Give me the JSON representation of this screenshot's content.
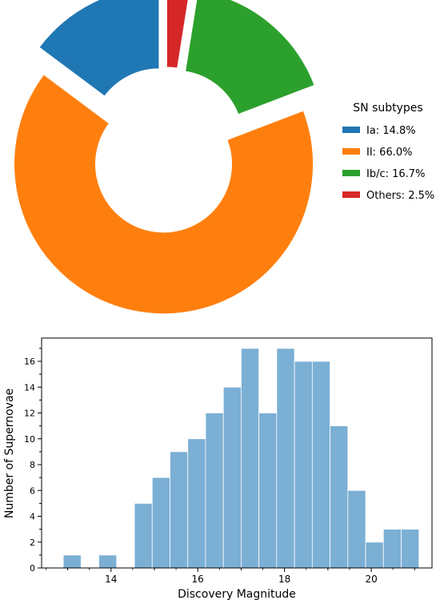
{
  "chart_data": [
    {
      "type": "pie",
      "donut": true,
      "exploded": true,
      "legend": {
        "title": "SN subtypes",
        "placement": "right"
      },
      "slices": [
        {
          "name": "Ia",
          "label": "Ia: 14.8%",
          "value": 14.8,
          "color": "#1f77b4"
        },
        {
          "name": "II",
          "label": "II: 66.0%",
          "value": 66.0,
          "color": "#ff7f0e"
        },
        {
          "name": "Ib/c",
          "label": "Ib/c: 16.7%",
          "value": 16.7,
          "color": "#2ca02c"
        },
        {
          "name": "Others",
          "label": "Others: 2.5%",
          "value": 2.5,
          "color": "#d62728"
        }
      ]
    },
    {
      "type": "bar",
      "histogram": true,
      "xlabel": "Discovery Magnitude",
      "ylabel": "Number of Supernovae",
      "xlim": [
        12.4,
        21.4
      ],
      "ylim": [
        0,
        17.8
      ],
      "xticks": [
        "14",
        "16",
        "18",
        "20"
      ],
      "yticks": [
        "0",
        "2",
        "4",
        "6",
        "8",
        "10",
        "12",
        "14",
        "16"
      ],
      "bin_width": 0.41,
      "color": "#7bafd4",
      "bins": [
        {
          "x": 12.9,
          "count": 1
        },
        {
          "x": 13.72,
          "count": 1
        },
        {
          "x": 14.54,
          "count": 5
        },
        {
          "x": 14.95,
          "count": 7
        },
        {
          "x": 15.36,
          "count": 9
        },
        {
          "x": 15.77,
          "count": 10
        },
        {
          "x": 16.18,
          "count": 12
        },
        {
          "x": 16.59,
          "count": 14
        },
        {
          "x": 17.0,
          "count": 17
        },
        {
          "x": 17.41,
          "count": 12
        },
        {
          "x": 17.82,
          "count": 17
        },
        {
          "x": 18.23,
          "count": 16
        },
        {
          "x": 18.64,
          "count": 16
        },
        {
          "x": 19.05,
          "count": 11
        },
        {
          "x": 19.46,
          "count": 6
        },
        {
          "x": 19.87,
          "count": 2
        },
        {
          "x": 20.28,
          "count": 3
        },
        {
          "x": 20.69,
          "count": 3
        }
      ]
    }
  ]
}
